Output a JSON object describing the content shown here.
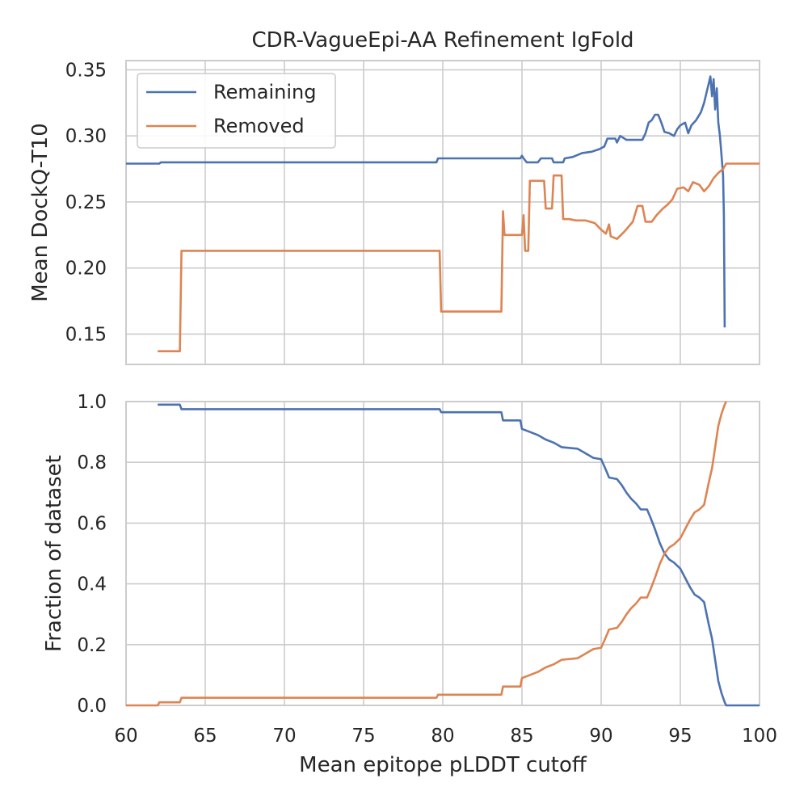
{
  "chart_data": [
    {
      "type": "line",
      "title": "CDR-VagueEpi-AA Refinement IgFold",
      "xlabel": "",
      "ylabel": "Mean DockQ-T10",
      "xlim": [
        60,
        100
      ],
      "ylim": [
        0.127,
        0.357
      ],
      "xticks": [
        60,
        65,
        70,
        75,
        80,
        85,
        90,
        95,
        100
      ],
      "yticks": [
        0.15,
        0.2,
        0.25,
        0.3,
        0.35
      ],
      "ytick_labels": [
        "0.15",
        "0.20",
        "0.25",
        "0.30",
        "0.35"
      ],
      "grid": true,
      "legend": {
        "position": "top-left",
        "entries": [
          "Remaining",
          "Removed"
        ]
      },
      "series": [
        {
          "name": "Remaining",
          "color": "#4c72b0",
          "points": [
            [
              60,
              0.279
            ],
            [
              62.1,
              0.279
            ],
            [
              62.2,
              0.28
            ],
            [
              79.6,
              0.28
            ],
            [
              79.7,
              0.283
            ],
            [
              84.9,
              0.283
            ],
            [
              85.0,
              0.285
            ],
            [
              85.1,
              0.283
            ],
            [
              85.3,
              0.28
            ],
            [
              86.0,
              0.28
            ],
            [
              86.2,
              0.283
            ],
            [
              86.9,
              0.283
            ],
            [
              87.0,
              0.28
            ],
            [
              87.6,
              0.28
            ],
            [
              87.7,
              0.283
            ],
            [
              88.2,
              0.284
            ],
            [
              88.8,
              0.287
            ],
            [
              89.4,
              0.288
            ],
            [
              89.9,
              0.29
            ],
            [
              90.2,
              0.292
            ],
            [
              90.4,
              0.298
            ],
            [
              90.9,
              0.298
            ],
            [
              91.0,
              0.295
            ],
            [
              91.2,
              0.3
            ],
            [
              91.6,
              0.297
            ],
            [
              92.0,
              0.297
            ],
            [
              92.6,
              0.297
            ],
            [
              92.8,
              0.302
            ],
            [
              93.0,
              0.31
            ],
            [
              93.2,
              0.312
            ],
            [
              93.4,
              0.316
            ],
            [
              93.6,
              0.316
            ],
            [
              93.8,
              0.31
            ],
            [
              94.0,
              0.303
            ],
            [
              94.3,
              0.302
            ],
            [
              94.6,
              0.3
            ],
            [
              94.8,
              0.305
            ],
            [
              95.0,
              0.308
            ],
            [
              95.3,
              0.31
            ],
            [
              95.5,
              0.302
            ],
            [
              95.7,
              0.308
            ],
            [
              96.0,
              0.312
            ],
            [
              96.3,
              0.318
            ],
            [
              96.5,
              0.325
            ],
            [
              96.7,
              0.335
            ],
            [
              96.8,
              0.34
            ],
            [
              96.9,
              0.345
            ],
            [
              97.0,
              0.33
            ],
            [
              97.1,
              0.343
            ],
            [
              97.2,
              0.32
            ],
            [
              97.3,
              0.336
            ],
            [
              97.4,
              0.31
            ],
            [
              97.5,
              0.3
            ],
            [
              97.6,
              0.285
            ],
            [
              97.7,
              0.27
            ],
            [
              97.75,
              0.24
            ],
            [
              97.8,
              0.155
            ]
          ]
        },
        {
          "name": "Removed",
          "color": "#dd8452",
          "points": [
            [
              62.0,
              0.137
            ],
            [
              63.4,
              0.137
            ],
            [
              63.5,
              0.213
            ],
            [
              79.8,
              0.213
            ],
            [
              79.9,
              0.167
            ],
            [
              83.7,
              0.167
            ],
            [
              83.8,
              0.243
            ],
            [
              83.9,
              0.225
            ],
            [
              85.0,
              0.225
            ],
            [
              85.1,
              0.24
            ],
            [
              85.2,
              0.213
            ],
            [
              85.4,
              0.213
            ],
            [
              85.5,
              0.266
            ],
            [
              86.4,
              0.266
            ],
            [
              86.5,
              0.245
            ],
            [
              86.9,
              0.245
            ],
            [
              87.0,
              0.27
            ],
            [
              87.5,
              0.27
            ],
            [
              87.6,
              0.237
            ],
            [
              88.0,
              0.237
            ],
            [
              88.4,
              0.236
            ],
            [
              89.0,
              0.236
            ],
            [
              89.6,
              0.234
            ],
            [
              90.0,
              0.229
            ],
            [
              90.3,
              0.226
            ],
            [
              90.5,
              0.233
            ],
            [
              90.6,
              0.224
            ],
            [
              91.0,
              0.222
            ],
            [
              91.5,
              0.228
            ],
            [
              92.0,
              0.235
            ],
            [
              92.3,
              0.247
            ],
            [
              92.6,
              0.247
            ],
            [
              92.8,
              0.235
            ],
            [
              93.2,
              0.235
            ],
            [
              93.5,
              0.24
            ],
            [
              93.9,
              0.245
            ],
            [
              94.2,
              0.248
            ],
            [
              94.5,
              0.252
            ],
            [
              94.8,
              0.26
            ],
            [
              95.2,
              0.261
            ],
            [
              95.5,
              0.258
            ],
            [
              95.8,
              0.265
            ],
            [
              96.2,
              0.263
            ],
            [
              96.5,
              0.258
            ],
            [
              96.8,
              0.262
            ],
            [
              97.1,
              0.268
            ],
            [
              97.4,
              0.272
            ],
            [
              97.7,
              0.275
            ],
            [
              97.9,
              0.279
            ],
            [
              100,
              0.279
            ]
          ]
        }
      ]
    },
    {
      "type": "line",
      "title": "",
      "xlabel": "Mean epitope pLDDT cutoff",
      "ylabel": "Fraction of dataset",
      "xlim": [
        60,
        100
      ],
      "ylim": [
        0.0,
        1.0
      ],
      "xticks": [
        60,
        65,
        70,
        75,
        80,
        85,
        90,
        95,
        100
      ],
      "yticks": [
        0.0,
        0.2,
        0.4,
        0.6,
        0.8,
        1.0
      ],
      "ytick_labels": [
        "0.0",
        "0.2",
        "0.4",
        "0.6",
        "0.8",
        "1.0"
      ],
      "grid": true,
      "series": [
        {
          "name": "Remaining",
          "color": "#4c72b0",
          "points": [
            [
              62.0,
              0.99
            ],
            [
              63.4,
              0.99
            ],
            [
              63.5,
              0.975
            ],
            [
              79.8,
              0.975
            ],
            [
              79.9,
              0.965
            ],
            [
              83.7,
              0.965
            ],
            [
              83.8,
              0.938
            ],
            [
              84.9,
              0.938
            ],
            [
              85.0,
              0.91
            ],
            [
              85.5,
              0.9
            ],
            [
              86.0,
              0.89
            ],
            [
              86.5,
              0.875
            ],
            [
              87.0,
              0.865
            ],
            [
              87.5,
              0.85
            ],
            [
              88.5,
              0.845
            ],
            [
              89.0,
              0.83
            ],
            [
              89.5,
              0.815
            ],
            [
              90.0,
              0.81
            ],
            [
              90.3,
              0.775
            ],
            [
              90.5,
              0.75
            ],
            [
              91.0,
              0.745
            ],
            [
              91.3,
              0.725
            ],
            [
              91.6,
              0.7
            ],
            [
              91.9,
              0.68
            ],
            [
              92.2,
              0.665
            ],
            [
              92.5,
              0.645
            ],
            [
              92.9,
              0.645
            ],
            [
              93.1,
              0.62
            ],
            [
              93.4,
              0.58
            ],
            [
              93.7,
              0.535
            ],
            [
              94.0,
              0.5
            ],
            [
              94.3,
              0.48
            ],
            [
              94.6,
              0.47
            ],
            [
              95.0,
              0.45
            ],
            [
              95.3,
              0.42
            ],
            [
              95.6,
              0.39
            ],
            [
              95.9,
              0.365
            ],
            [
              96.2,
              0.355
            ],
            [
              96.5,
              0.34
            ],
            [
              96.8,
              0.265
            ],
            [
              97.0,
              0.22
            ],
            [
              97.2,
              0.15
            ],
            [
              97.4,
              0.08
            ],
            [
              97.6,
              0.04
            ],
            [
              97.8,
              0.01
            ],
            [
              97.9,
              0.0
            ],
            [
              100,
              0.0
            ]
          ]
        },
        {
          "name": "Removed",
          "color": "#dd8452",
          "points": [
            [
              60,
              0.0
            ],
            [
              62.0,
              0.0
            ],
            [
              62.1,
              0.01
            ],
            [
              63.4,
              0.01
            ],
            [
              63.5,
              0.025
            ],
            [
              79.6,
              0.025
            ],
            [
              79.7,
              0.035
            ],
            [
              83.7,
              0.035
            ],
            [
              83.8,
              0.062
            ],
            [
              84.9,
              0.062
            ],
            [
              85.0,
              0.09
            ],
            [
              85.5,
              0.1
            ],
            [
              86.0,
              0.11
            ],
            [
              86.5,
              0.125
            ],
            [
              87.0,
              0.135
            ],
            [
              87.5,
              0.15
            ],
            [
              88.5,
              0.155
            ],
            [
              89.0,
              0.17
            ],
            [
              89.5,
              0.185
            ],
            [
              90.0,
              0.19
            ],
            [
              90.3,
              0.225
            ],
            [
              90.5,
              0.25
            ],
            [
              91.0,
              0.255
            ],
            [
              91.3,
              0.275
            ],
            [
              91.6,
              0.3
            ],
            [
              91.9,
              0.32
            ],
            [
              92.2,
              0.335
            ],
            [
              92.5,
              0.355
            ],
            [
              92.9,
              0.355
            ],
            [
              93.1,
              0.38
            ],
            [
              93.4,
              0.42
            ],
            [
              93.7,
              0.465
            ],
            [
              94.0,
              0.5
            ],
            [
              94.3,
              0.52
            ],
            [
              94.6,
              0.53
            ],
            [
              95.0,
              0.55
            ],
            [
              95.3,
              0.58
            ],
            [
              95.6,
              0.61
            ],
            [
              95.9,
              0.635
            ],
            [
              96.2,
              0.645
            ],
            [
              96.5,
              0.66
            ],
            [
              96.8,
              0.735
            ],
            [
              97.0,
              0.78
            ],
            [
              97.2,
              0.85
            ],
            [
              97.4,
              0.92
            ],
            [
              97.6,
              0.96
            ],
            [
              97.8,
              0.99
            ],
            [
              97.9,
              1.0
            ]
          ]
        }
      ]
    }
  ]
}
